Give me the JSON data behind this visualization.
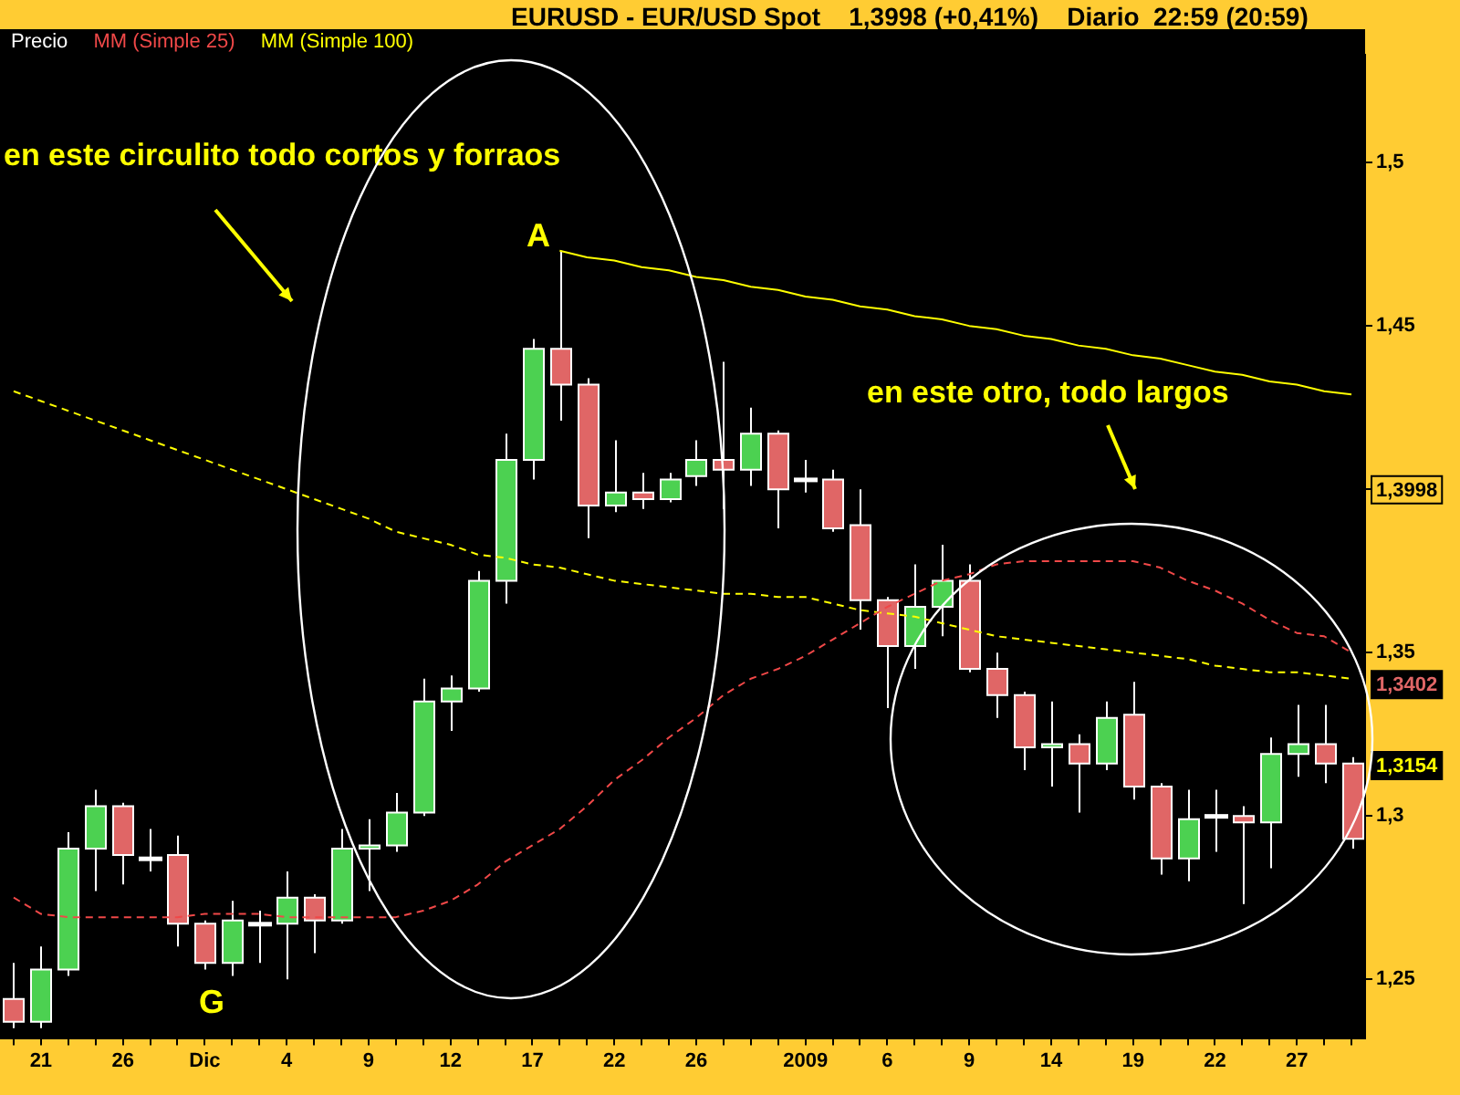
{
  "chart_data": {
    "type": "candlestick",
    "title": "EURUSD - EUR/USD Spot    1,3998 (+0,41%)    Diario  22:59 (20:59)",
    "categories": [
      null,
      "21",
      null,
      null,
      "26",
      null,
      null,
      "Dic",
      null,
      null,
      "4",
      null,
      null,
      "9",
      null,
      null,
      "12",
      null,
      null,
      "17",
      null,
      null,
      "22",
      null,
      null,
      "26",
      null,
      null,
      null,
      "2009",
      null,
      null,
      "6",
      null,
      null,
      "9",
      null,
      null,
      "14",
      null,
      null,
      "19",
      null,
      null,
      "22",
      null,
      null,
      "27",
      null,
      null
    ],
    "series": [
      {
        "name": "Precio",
        "color": "#ffffff",
        "colors": [
          "#e06666",
          "#4cd151",
          "#4cd151",
          "#4cd151",
          "#e06666",
          "#ffffff",
          "#e06666",
          "#e06666",
          "#4cd151",
          "#ffffff",
          "#4cd151",
          "#e06666",
          "#4cd151",
          "#4cd151",
          "#4cd151",
          "#4cd151",
          "#4cd151",
          "#4cd151",
          "#4cd151",
          "#4cd151",
          "#e06666",
          "#e06666",
          "#4cd151",
          "#e06666",
          "#4cd151",
          "#4cd151",
          "#e06666",
          "#4cd151",
          "#e06666",
          "#ffffff",
          "#e06666",
          "#e06666",
          "#e06666",
          "#4cd151",
          "#4cd151",
          "#e06666",
          "#e06666",
          "#e06666",
          "#4cd151",
          "#e06666",
          "#4cd151",
          "#e06666",
          "#e06666",
          "#4cd151",
          "#ffffff",
          "#e06666",
          "#4cd151",
          "#4cd151",
          "#e06666",
          "#e06666"
        ],
        "ohlc": [
          [
            1.244,
            1.255,
            1.235,
            1.237
          ],
          [
            1.237,
            1.26,
            1.235,
            1.253
          ],
          [
            1.253,
            1.295,
            1.251,
            1.29
          ],
          [
            1.29,
            1.308,
            1.277,
            1.303
          ],
          [
            1.303,
            1.304,
            1.279,
            1.288
          ],
          [
            1.287,
            1.296,
            1.283,
            1.287
          ],
          [
            1.288,
            1.294,
            1.26,
            1.267
          ],
          [
            1.267,
            1.268,
            1.253,
            1.255
          ],
          [
            1.255,
            1.274,
            1.251,
            1.268
          ],
          [
            1.267,
            1.271,
            1.255,
            1.267
          ],
          [
            1.267,
            1.283,
            1.25,
            1.275
          ],
          [
            1.275,
            1.276,
            1.258,
            1.268
          ],
          [
            1.268,
            1.296,
            1.267,
            1.29
          ],
          [
            1.29,
            1.299,
            1.277,
            1.291
          ],
          [
            1.291,
            1.307,
            1.289,
            1.301
          ],
          [
            1.301,
            1.342,
            1.3,
            1.335
          ],
          [
            1.335,
            1.343,
            1.326,
            1.339
          ],
          [
            1.339,
            1.375,
            1.338,
            1.372
          ],
          [
            1.372,
            1.417,
            1.365,
            1.409
          ],
          [
            1.409,
            1.446,
            1.403,
            1.443
          ],
          [
            1.443,
            1.473,
            1.421,
            1.432
          ],
          [
            1.432,
            1.434,
            1.385,
            1.395
          ],
          [
            1.395,
            1.415,
            1.393,
            1.399
          ],
          [
            1.399,
            1.405,
            1.394,
            1.397
          ],
          [
            1.397,
            1.405,
            1.396,
            1.403
          ],
          [
            1.404,
            1.415,
            1.401,
            1.409
          ],
          [
            1.409,
            1.439,
            1.394,
            1.406
          ],
          [
            1.406,
            1.425,
            1.401,
            1.417
          ],
          [
            1.417,
            1.418,
            1.388,
            1.4
          ],
          [
            1.403,
            1.409,
            1.399,
            1.403
          ],
          [
            1.403,
            1.406,
            1.387,
            1.388
          ],
          [
            1.389,
            1.4,
            1.357,
            1.366
          ],
          [
            1.366,
            1.367,
            1.333,
            1.352
          ],
          [
            1.352,
            1.377,
            1.345,
            1.364
          ],
          [
            1.364,
            1.383,
            1.355,
            1.372
          ],
          [
            1.372,
            1.377,
            1.344,
            1.345
          ],
          [
            1.345,
            1.35,
            1.33,
            1.337
          ],
          [
            1.337,
            1.338,
            1.314,
            1.321
          ],
          [
            1.321,
            1.335,
            1.309,
            1.322
          ],
          [
            1.322,
            1.325,
            1.301,
            1.316
          ],
          [
            1.316,
            1.335,
            1.314,
            1.33
          ],
          [
            1.331,
            1.341,
            1.305,
            1.309
          ],
          [
            1.309,
            1.31,
            1.282,
            1.287
          ],
          [
            1.287,
            1.308,
            1.28,
            1.299
          ],
          [
            1.3,
            1.308,
            1.289,
            1.3
          ],
          [
            1.3,
            1.303,
            1.273,
            1.298
          ],
          [
            1.298,
            1.324,
            1.284,
            1.319
          ],
          [
            1.319,
            1.334,
            1.312,
            1.322
          ],
          [
            1.322,
            1.334,
            1.31,
            1.316
          ],
          [
            1.316,
            1.318,
            1.29,
            1.293
          ]
        ]
      },
      {
        "type": "line",
        "name": "MM (Simple 25)",
        "color": "#f04848",
        "line_style": "dashed",
        "values": [
          1.275,
          1.27,
          1.269,
          1.269,
          1.269,
          1.269,
          1.269,
          1.27,
          1.27,
          1.27,
          1.269,
          1.269,
          1.269,
          1.269,
          1.269,
          1.271,
          1.274,
          1.279,
          1.286,
          1.291,
          1.296,
          1.303,
          1.311,
          1.317,
          1.324,
          1.33,
          1.337,
          1.342,
          1.345,
          1.349,
          1.354,
          1.359,
          1.364,
          1.368,
          1.372,
          1.374,
          1.377,
          1.378,
          1.378,
          1.378,
          1.378,
          1.378,
          1.376,
          1.372,
          1.369,
          1.365,
          1.36,
          1.356,
          1.355,
          1.35
        ]
      },
      {
        "type": "line",
        "name": "MM (Simple 100)",
        "color": "#ffff00",
        "line_style": "dashed",
        "values": [
          1.43,
          1.427,
          1.424,
          1.421,
          1.418,
          1.415,
          1.412,
          1.409,
          1.406,
          1.403,
          1.4,
          1.397,
          1.394,
          1.391,
          1.387,
          1.385,
          1.383,
          1.38,
          1.379,
          1.377,
          1.376,
          1.374,
          1.372,
          1.371,
          1.37,
          1.369,
          1.368,
          1.368,
          1.367,
          1.367,
          1.365,
          1.363,
          1.362,
          1.361,
          1.359,
          1.357,
          1.355,
          1.354,
          1.353,
          1.352,
          1.351,
          1.35,
          1.349,
          1.348,
          1.346,
          1.345,
          1.344,
          1.344,
          1.343,
          1.342
        ]
      },
      {
        "type": "line",
        "color": "#ffff00",
        "line_style": "solid",
        "values": [
          null,
          null,
          null,
          null,
          null,
          null,
          null,
          null,
          null,
          null,
          null,
          null,
          null,
          null,
          null,
          null,
          null,
          null,
          null,
          null,
          1.473,
          1.471,
          1.47,
          1.468,
          1.467,
          1.465,
          1.464,
          1.462,
          1.461,
          1.459,
          1.458,
          1.456,
          1.455,
          1.453,
          1.452,
          1.45,
          1.449,
          1.447,
          1.446,
          1.444,
          1.443,
          1.441,
          1.44,
          1.438,
          1.436,
          1.435,
          1.433,
          1.432,
          1.43,
          1.429
        ]
      }
    ],
    "ylim": [
      1.232,
      1.533
    ],
    "yticks": [
      {
        "value": 1.25,
        "label": "1,25"
      },
      {
        "value": 1.3,
        "label": "1,3"
      },
      {
        "value": 1.35,
        "label": "1,35"
      },
      {
        "value": 1.4,
        "label": null
      },
      {
        "value": 1.45,
        "label": "1,45"
      },
      {
        "value": 1.5,
        "label": "1,5"
      }
    ],
    "grid": false,
    "legend": "top left",
    "annotations": [
      "en este circulito todo cortos y forraos",
      "en este otro, todo largos",
      "A",
      "G",
      {
        "text": "1,3998",
        "y": 1.3998
      },
      {
        "text": "1,3402",
        "y": 1.3402
      },
      {
        "text": "1,3154",
        "y": 1.3154
      }
    ]
  }
}
